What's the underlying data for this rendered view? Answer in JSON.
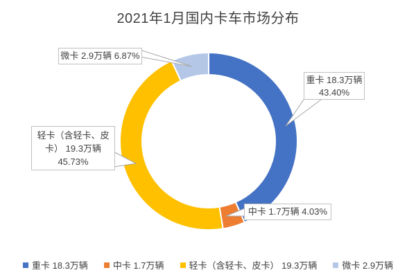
{
  "title": "2021年1月国内卡车市场分布",
  "chart_data": {
    "type": "pie",
    "subtype": "donut",
    "title": "2021年1月国内卡车市场分布",
    "categories": [
      "重卡",
      "中卡",
      "轻卡（含轻卡、皮卡）",
      "微卡"
    ],
    "values": [
      18.3,
      1.7,
      19.3,
      2.9
    ],
    "value_unit": "万辆",
    "percentages": [
      43.4,
      4.03,
      45.73,
      6.87
    ],
    "colors": [
      "#4472C4",
      "#ED7D31",
      "#FFC000",
      "#B4C7E7"
    ],
    "start_angle_deg": 0,
    "direction": "clockwise",
    "hole_ratio": 0.75,
    "legend_position": "bottom"
  },
  "data_labels": {
    "micro": {
      "text": "微卡 2.9万辆 6.87%"
    },
    "heavy": {
      "line1": "重卡 18.3万辆",
      "line2": "43.40%"
    },
    "light": {
      "line1": "轻卡（含轻卡、皮",
      "line2": "卡） 19.3万辆",
      "line3": "45.73%"
    },
    "medium": {
      "text": "中卡 1.7万辆 4.03%"
    }
  },
  "legend": {
    "items": [
      {
        "key": "heavy-truck",
        "label": "重卡 18.3万辆",
        "color": "#4472C4"
      },
      {
        "key": "medium-truck",
        "label": "中卡 1.7万辆",
        "color": "#ED7D31"
      },
      {
        "key": "light-truck",
        "label": "轻卡（含轻卡、皮卡） 19.3万辆",
        "color": "#FFC000"
      },
      {
        "key": "micro-truck",
        "label": "微卡 2.9万辆",
        "color": "#B4C7E7"
      }
    ]
  }
}
